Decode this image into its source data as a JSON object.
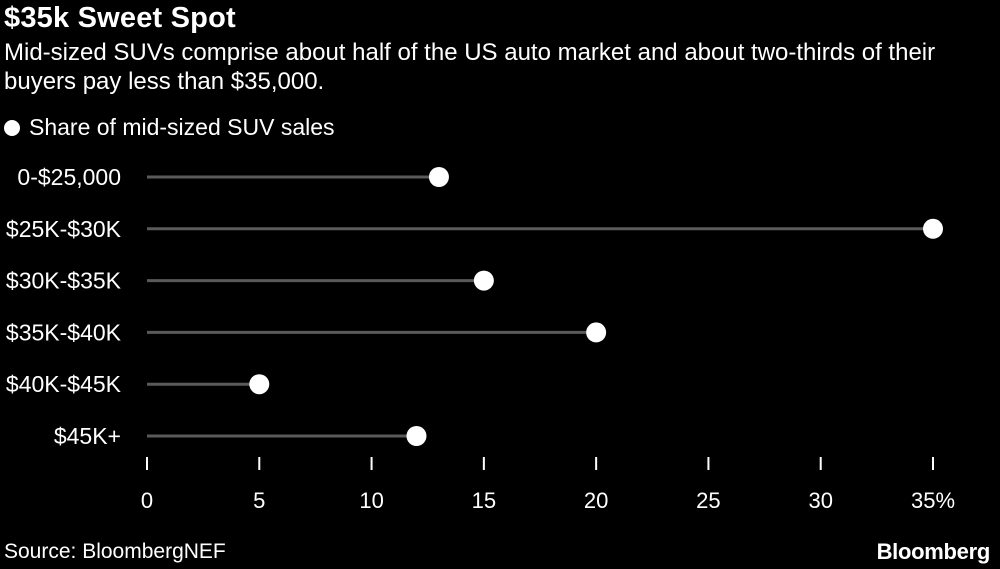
{
  "header": {
    "title": "$35k Sweet Spot",
    "subtitle": "Mid-sized SUVs comprise about half of the US auto market and about two-thirds of their buyers pay less than $35,000."
  },
  "footer": {
    "source": "Source: BloombergNEF",
    "brand": "Bloomberg"
  },
  "colors": {
    "background": "#000000",
    "text": "#ffffff",
    "dot": "#ffffff",
    "stem": "#5a5a5a",
    "tick": "#ffffff"
  },
  "chart_data": {
    "type": "bar",
    "style": "lollipop",
    "orientation": "horizontal",
    "legend": [
      "Share of mid-sized SUV sales"
    ],
    "legend_position": "top-left",
    "categories": [
      "0-$25,000",
      "$25K-$30K",
      "$30K-$35K",
      "$35K-$40K",
      "$40K-$45K",
      "$45K+"
    ],
    "series": [
      {
        "name": "Share of mid-sized SUV sales",
        "values": [
          13,
          35,
          15,
          20,
          5,
          12
        ]
      }
    ],
    "xlim": [
      0,
      35
    ],
    "xticks": [
      0,
      5,
      10,
      15,
      20,
      25,
      30,
      35
    ],
    "xtick_labels": [
      "0",
      "5",
      "10",
      "15",
      "20",
      "25",
      "30",
      "35%"
    ],
    "grid": false
  }
}
